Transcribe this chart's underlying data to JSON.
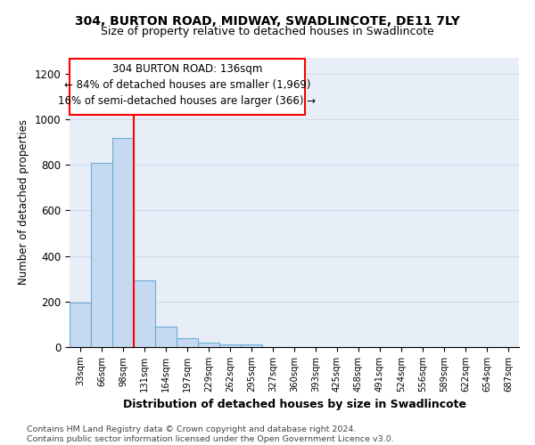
{
  "title1": "304, BURTON ROAD, MIDWAY, SWADLINCOTE, DE11 7LY",
  "title2": "Size of property relative to detached houses in Swadlincote",
  "xlabel": "Distribution of detached houses by size in Swadlincote",
  "ylabel": "Number of detached properties",
  "footnote": "Contains HM Land Registry data © Crown copyright and database right 2024.\nContains public sector information licensed under the Open Government Licence v3.0.",
  "bin_labels": [
    "33sqm",
    "66sqm",
    "98sqm",
    "131sqm",
    "164sqm",
    "197sqm",
    "229sqm",
    "262sqm",
    "295sqm",
    "327sqm",
    "360sqm",
    "393sqm",
    "425sqm",
    "458sqm",
    "491sqm",
    "524sqm",
    "556sqm",
    "589sqm",
    "622sqm",
    "654sqm",
    "687sqm"
  ],
  "bar_values": [
    195,
    810,
    920,
    295,
    88,
    38,
    18,
    12,
    10,
    0,
    0,
    0,
    0,
    0,
    0,
    0,
    0,
    0,
    0,
    0,
    0
  ],
  "bar_color": "#c5d9f0",
  "bar_edge_color": "#6baed6",
  "grid_color": "#d0d8e8",
  "bg_color": "#e8eef8",
  "vline_color": "red",
  "vline_x_idx": 2.5,
  "annotation_line1": "304 BURTON ROAD: 136sqm",
  "annotation_line2": "← 84% of detached houses are smaller (1,969)",
  "annotation_line3": "16% of semi-detached houses are larger (366) →",
  "ylim": [
    0,
    1270
  ],
  "yticks": [
    0,
    200,
    400,
    600,
    800,
    1000,
    1200
  ]
}
